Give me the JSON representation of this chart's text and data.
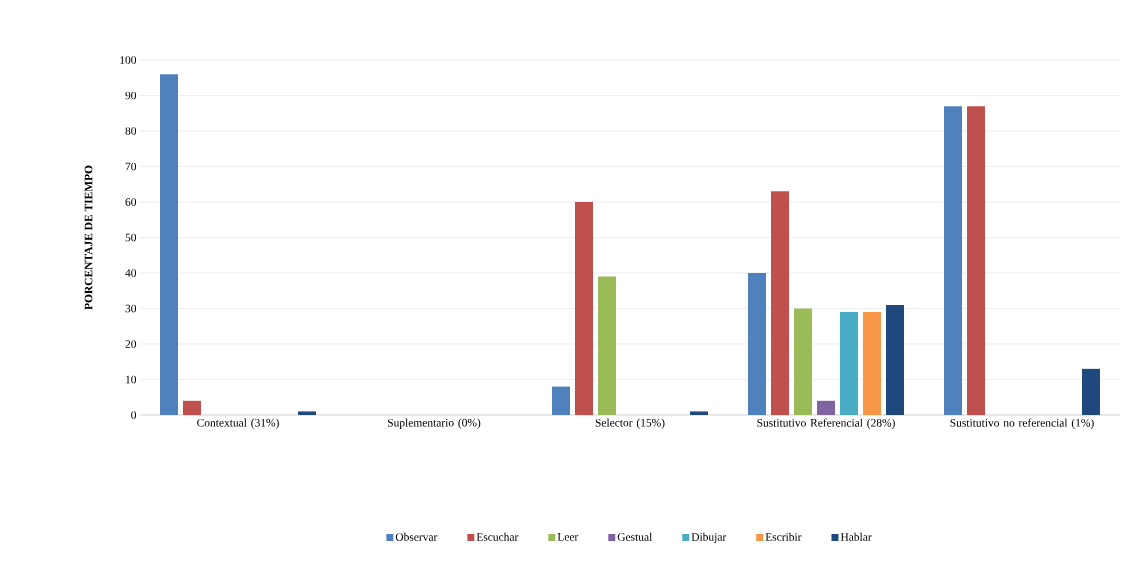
{
  "chart_data": {
    "type": "bar",
    "ylabel": "PORCENTAJE DE TIEMPO",
    "categories": [
      "Contextual (31%)",
      "Suplementario (0%)",
      "Selector (15%)",
      "Sustitutivo Referencial (28%)",
      "Sustitutivo no referencial (1%)"
    ],
    "series": [
      {
        "name": "Observar",
        "color": "#4f81bd",
        "values": [
          96,
          0,
          8,
          40,
          87
        ]
      },
      {
        "name": "Escuchar",
        "color": "#c0504d",
        "values": [
          4,
          0,
          60,
          63,
          87
        ]
      },
      {
        "name": "Leer",
        "color": "#9bbb59",
        "values": [
          0,
          0,
          39,
          30,
          0
        ]
      },
      {
        "name": "Gestual",
        "color": "#8064a2",
        "values": [
          0,
          0,
          0,
          4,
          0
        ]
      },
      {
        "name": "Dibujar",
        "color": "#4bacc6",
        "values": [
          0,
          0,
          0,
          29,
          0
        ]
      },
      {
        "name": "Escribir",
        "color": "#f79646",
        "values": [
          0,
          0,
          0,
          29,
          0
        ]
      },
      {
        "name": "Hablar",
        "color": "#1f497d",
        "values": [
          1,
          0,
          1,
          31,
          13
        ]
      }
    ],
    "ylim": [
      0,
      100
    ],
    "yticks": [
      0,
      10,
      20,
      30,
      40,
      50,
      60,
      70,
      80,
      90,
      100
    ],
    "grid": "y",
    "legend": "bottom"
  }
}
